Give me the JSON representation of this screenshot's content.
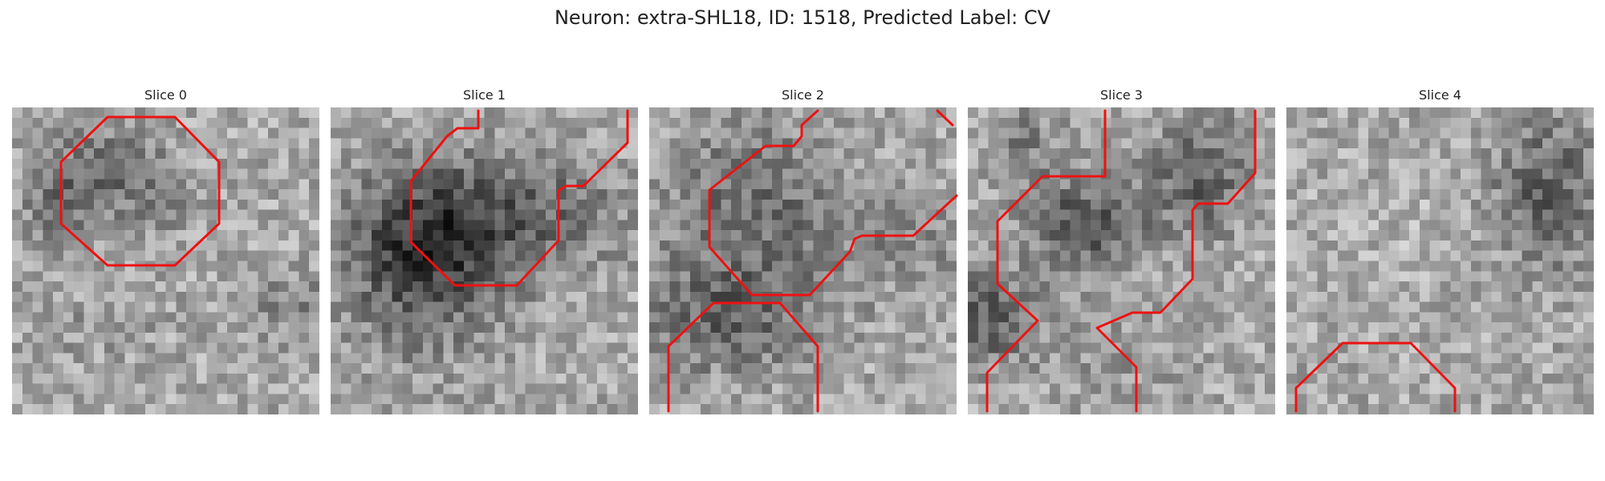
{
  "figure": {
    "title": "Neuron: extra-SHL18, ID: 1518, Predicted Label: CV"
  },
  "colors": {
    "contour": "#ee1111",
    "image_cmap": "gray"
  },
  "slices": [
    {
      "title": "Slice 0"
    },
    {
      "title": "Slice 1"
    },
    {
      "title": "Slice 2"
    },
    {
      "title": "Slice 3"
    },
    {
      "title": "Slice 4"
    }
  ]
}
